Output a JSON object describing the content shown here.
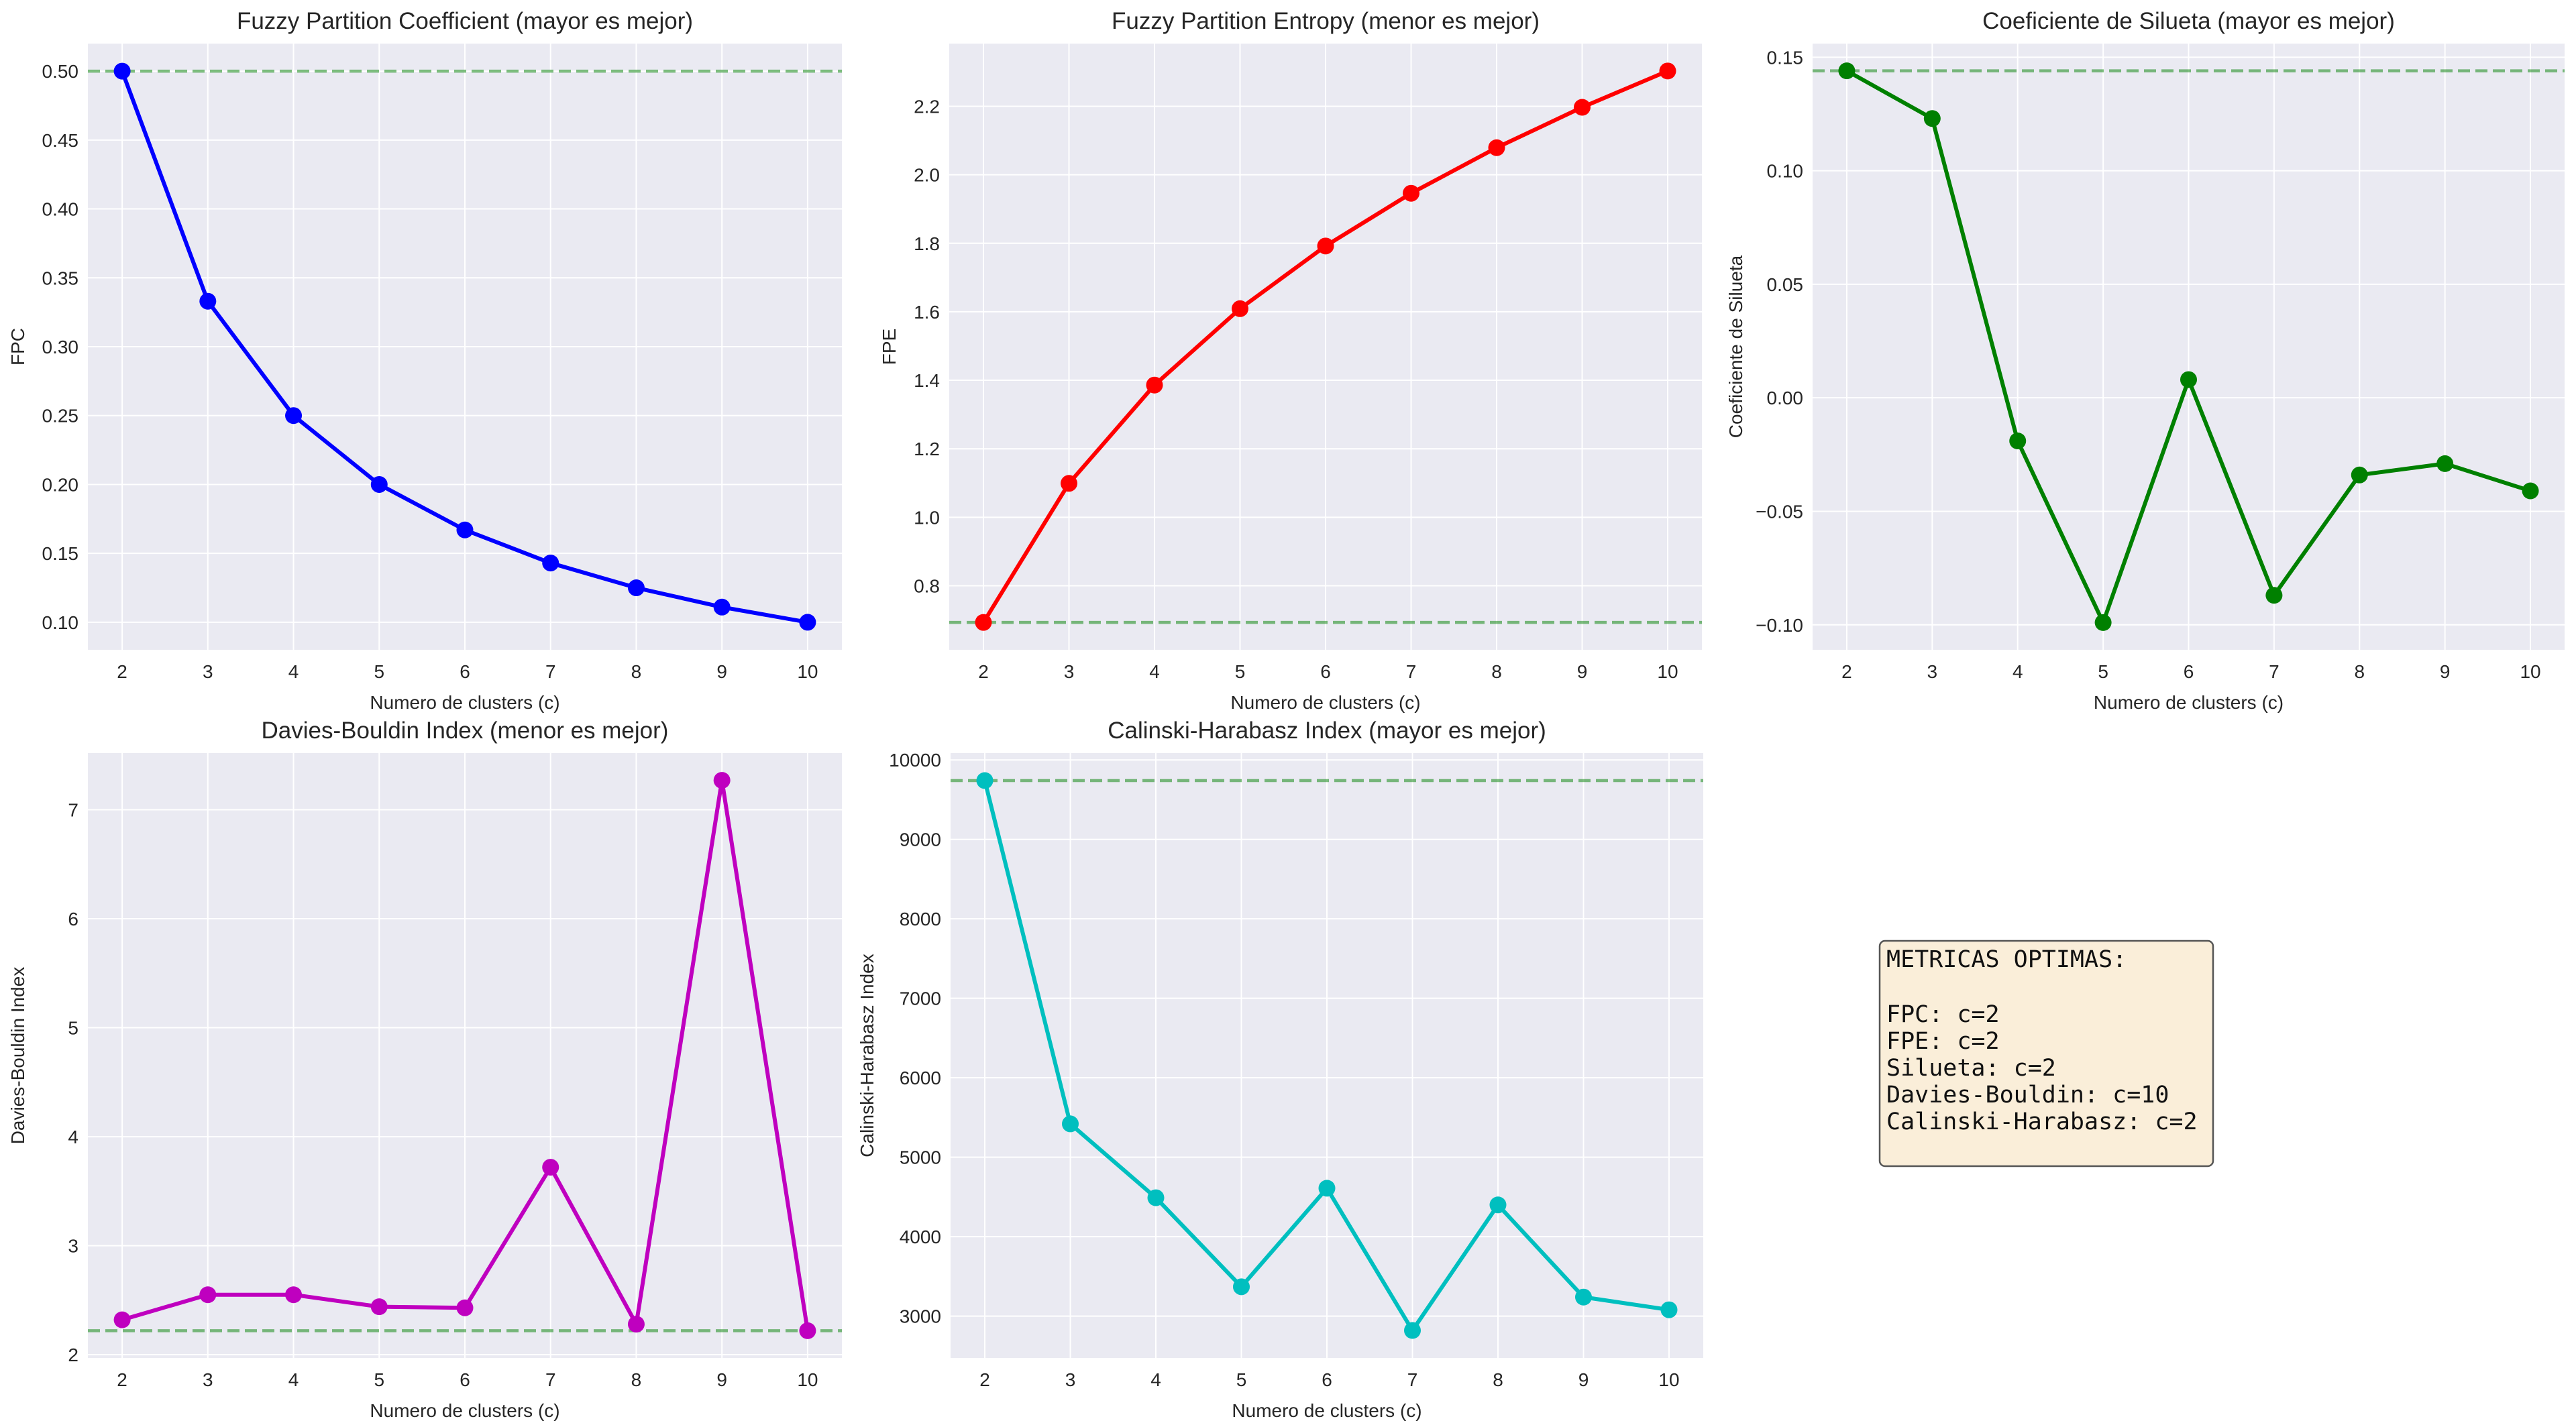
{
  "chart_data": [
    {
      "type": "line",
      "title": "Fuzzy Partition Coefficient (mayor es mejor)",
      "xlabel": "Numero de clusters (c)",
      "ylabel": "FPC",
      "x": [
        2,
        3,
        4,
        5,
        6,
        7,
        8,
        9,
        10
      ],
      "values": [
        0.5,
        0.333,
        0.25,
        0.2,
        0.167,
        0.143,
        0.125,
        0.111,
        0.1
      ],
      "color": "#0000ff",
      "best_line": 0.5,
      "xlim": [
        1.6,
        10.4
      ],
      "ylim": [
        0.08,
        0.52
      ],
      "yticks": [
        0.1,
        0.15,
        0.2,
        0.25,
        0.3,
        0.35,
        0.4,
        0.45,
        0.5
      ],
      "ytick_labels": [
        "0.10",
        "0.15",
        "0.20",
        "0.25",
        "0.30",
        "0.35",
        "0.40",
        "0.45",
        "0.50"
      ],
      "grid": true
    },
    {
      "type": "line",
      "title": "Fuzzy Partition Entropy (menor es mejor)",
      "xlabel": "Numero de clusters (c)",
      "ylabel": "FPE",
      "x": [
        2,
        3,
        4,
        5,
        6,
        7,
        8,
        9,
        10
      ],
      "values": [
        0.693,
        1.099,
        1.386,
        1.609,
        1.792,
        1.946,
        2.079,
        2.197,
        2.303
      ],
      "color": "#ff0000",
      "best_line": 0.693,
      "xlim": [
        1.6,
        10.4
      ],
      "ylim": [
        0.613,
        2.383
      ],
      "yticks": [
        0.8,
        1.0,
        1.2,
        1.4,
        1.6,
        1.8,
        2.0,
        2.2
      ],
      "ytick_labels": [
        "0.8",
        "1.0",
        "1.2",
        "1.4",
        "1.6",
        "1.8",
        "2.0",
        "2.2"
      ],
      "grid": true
    },
    {
      "type": "line",
      "title": "Coeficiente de Silueta (mayor es mejor)",
      "xlabel": "Numero de clusters (c)",
      "ylabel": "Coeficiente de Silueta",
      "x": [
        2,
        3,
        4,
        5,
        6,
        7,
        8,
        9,
        10
      ],
      "values": [
        0.144,
        0.123,
        -0.019,
        -0.099,
        0.008,
        -0.087,
        -0.034,
        -0.029,
        -0.041
      ],
      "color": "#008000",
      "best_line": 0.144,
      "xlim": [
        1.6,
        10.4
      ],
      "ylim": [
        -0.111,
        0.156
      ],
      "yticks": [
        -0.1,
        -0.05,
        0.0,
        0.05,
        0.1,
        0.15
      ],
      "ytick_labels": [
        "−0.10",
        "−0.05",
        "0.00",
        "0.05",
        "0.10",
        "0.15"
      ],
      "grid": true
    },
    {
      "type": "line",
      "title": "Davies-Bouldin Index (menor es mejor)",
      "xlabel": "Numero de clusters (c)",
      "ylabel": "Davies-Bouldin Index",
      "x": [
        2,
        3,
        4,
        5,
        6,
        7,
        8,
        9,
        10
      ],
      "values": [
        2.32,
        2.55,
        2.55,
        2.44,
        2.43,
        3.72,
        2.28,
        7.27,
        2.22
      ],
      "color": "#bf00bf",
      "best_line": 2.22,
      "xlim": [
        1.6,
        10.4
      ],
      "ylim": [
        1.97,
        7.52
      ],
      "yticks": [
        2,
        3,
        4,
        5,
        6,
        7
      ],
      "ytick_labels": [
        "2",
        "3",
        "4",
        "5",
        "6",
        "7"
      ],
      "grid": true
    },
    {
      "type": "line",
      "title": "Calinski-Harabasz Index (mayor es mejor)",
      "xlabel": "Numero de clusters (c)",
      "ylabel": "Calinski-Harabasz Index",
      "x": [
        2,
        3,
        4,
        5,
        6,
        7,
        8,
        9,
        10
      ],
      "values": [
        9740,
        5420,
        4490,
        3370,
        4610,
        2820,
        4400,
        3240,
        3080
      ],
      "color": "#00bfbf",
      "best_line": 9740,
      "xlim": [
        1.6,
        10.4
      ],
      "ylim": [
        2474,
        10086
      ],
      "yticks": [
        3000,
        4000,
        5000,
        6000,
        7000,
        8000,
        9000,
        10000
      ],
      "ytick_labels": [
        "3000",
        "4000",
        "5000",
        "6000",
        "7000",
        "8000",
        "9000",
        "10000"
      ],
      "grid": true
    }
  ],
  "xtick_labels": [
    "2",
    "3",
    "4",
    "5",
    "6",
    "7",
    "8",
    "9",
    "10"
  ],
  "best_line_color": "#008000",
  "summary_box": {
    "heading": "METRICAS OPTIMAS:",
    "lines": [
      "FPC: c=2",
      "FPE: c=2",
      "Silueta: c=2",
      "Davies-Bouldin: c=10",
      "Calinski-Harabasz: c=2"
    ],
    "background": "#f5deb3"
  }
}
